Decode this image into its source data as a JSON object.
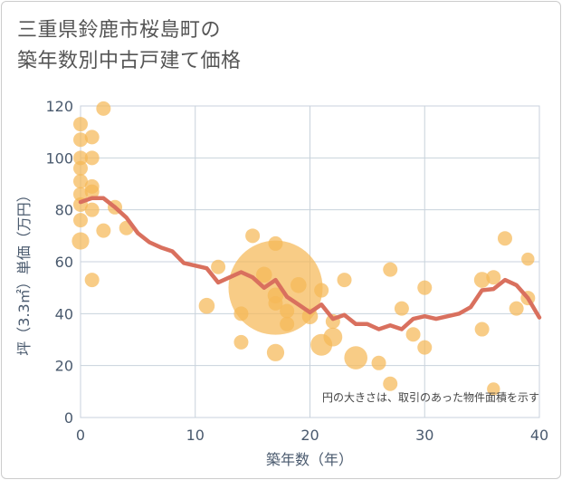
{
  "title_lines": [
    "三重県鈴鹿市桜島町の",
    "築年数別中古戸建て価格"
  ],
  "colors": {
    "bubble": "#f5b957",
    "line": "#d9705e",
    "grid": "#c8d2dc",
    "axis_text": "#4a5a6e"
  },
  "chart_data": {
    "type": "scatter",
    "xlabel": "築年数（年）",
    "ylabel": "坪（3.3㎡）単価（万円）",
    "xlim": [
      0,
      40
    ],
    "ylim": [
      0,
      120
    ],
    "x_ticks": [
      "0",
      "10",
      "20",
      "30",
      "40"
    ],
    "y_ticks": [
      "0",
      "20",
      "40",
      "60",
      "80",
      "100",
      "120"
    ],
    "grid": true,
    "annotation": "円の大きさは、取引のあった物件面積を示す",
    "series": [
      {
        "kind": "bubble",
        "points": [
          {
            "x": 0,
            "y": 113,
            "s": 1
          },
          {
            "x": 0,
            "y": 107,
            "s": 1
          },
          {
            "x": 0,
            "y": 100,
            "s": 1
          },
          {
            "x": 0,
            "y": 96,
            "s": 1
          },
          {
            "x": 0,
            "y": 91,
            "s": 1
          },
          {
            "x": 0,
            "y": 86,
            "s": 1
          },
          {
            "x": 0,
            "y": 82,
            "s": 1
          },
          {
            "x": 0,
            "y": 76,
            "s": 1
          },
          {
            "x": 0,
            "y": 68,
            "s": 1.2
          },
          {
            "x": 1,
            "y": 108,
            "s": 1
          },
          {
            "x": 1,
            "y": 100,
            "s": 1
          },
          {
            "x": 1,
            "y": 89,
            "s": 1
          },
          {
            "x": 1,
            "y": 87,
            "s": 1
          },
          {
            "x": 1,
            "y": 80,
            "s": 1
          },
          {
            "x": 1,
            "y": 53,
            "s": 1
          },
          {
            "x": 2,
            "y": 119,
            "s": 1
          },
          {
            "x": 2,
            "y": 72,
            "s": 1
          },
          {
            "x": 3,
            "y": 81,
            "s": 1
          },
          {
            "x": 4,
            "y": 73,
            "s": 1
          },
          {
            "x": 11,
            "y": 43,
            "s": 1.1
          },
          {
            "x": 12,
            "y": 58,
            "s": 1
          },
          {
            "x": 14,
            "y": 40,
            "s": 1
          },
          {
            "x": 14,
            "y": 29,
            "s": 1
          },
          {
            "x": 15,
            "y": 70,
            "s": 1
          },
          {
            "x": 16,
            "y": 55,
            "s": 1.1
          },
          {
            "x": 17,
            "y": 50,
            "s": 6.5
          },
          {
            "x": 17,
            "y": 67,
            "s": 1
          },
          {
            "x": 17,
            "y": 47,
            "s": 1.1
          },
          {
            "x": 17,
            "y": 44,
            "s": 1
          },
          {
            "x": 17,
            "y": 25,
            "s": 1.2
          },
          {
            "x": 18,
            "y": 41,
            "s": 1
          },
          {
            "x": 18,
            "y": 36,
            "s": 1
          },
          {
            "x": 19,
            "y": 51,
            "s": 1.1
          },
          {
            "x": 20,
            "y": 39,
            "s": 1.1
          },
          {
            "x": 21,
            "y": 49,
            "s": 1
          },
          {
            "x": 21,
            "y": 28,
            "s": 1.5
          },
          {
            "x": 22,
            "y": 37,
            "s": 1
          },
          {
            "x": 22,
            "y": 31,
            "s": 1.3
          },
          {
            "x": 23,
            "y": 53,
            "s": 1
          },
          {
            "x": 24,
            "y": 23,
            "s": 1.6
          },
          {
            "x": 26,
            "y": 21,
            "s": 1
          },
          {
            "x": 27,
            "y": 57,
            "s": 1
          },
          {
            "x": 27,
            "y": 13,
            "s": 1
          },
          {
            "x": 28,
            "y": 42,
            "s": 1
          },
          {
            "x": 29,
            "y": 32,
            "s": 1
          },
          {
            "x": 30,
            "y": 50,
            "s": 1
          },
          {
            "x": 30,
            "y": 27,
            "s": 1
          },
          {
            "x": 35,
            "y": 53,
            "s": 1.1
          },
          {
            "x": 35,
            "y": 34,
            "s": 1
          },
          {
            "x": 36,
            "y": 54,
            "s": 1
          },
          {
            "x": 36,
            "y": 11,
            "s": 0.9
          },
          {
            "x": 37,
            "y": 69,
            "s": 1
          },
          {
            "x": 38,
            "y": 42,
            "s": 1
          },
          {
            "x": 39,
            "y": 61,
            "s": 0.9
          },
          {
            "x": 39,
            "y": 46,
            "s": 1
          }
        ]
      },
      {
        "kind": "line",
        "points": [
          {
            "x": 0,
            "y": 83
          },
          {
            "x": 1,
            "y": 84.5
          },
          {
            "x": 2,
            "y": 84.5
          },
          {
            "x": 3,
            "y": 81
          },
          {
            "x": 4,
            "y": 77
          },
          {
            "x": 5,
            "y": 71
          },
          {
            "x": 6,
            "y": 67.5
          },
          {
            "x": 7,
            "y": 65.5
          },
          {
            "x": 8,
            "y": 64
          },
          {
            "x": 9,
            "y": 59.5
          },
          {
            "x": 10,
            "y": 58.5
          },
          {
            "x": 11,
            "y": 57.5
          },
          {
            "x": 12,
            "y": 52
          },
          {
            "x": 13,
            "y": 54
          },
          {
            "x": 14,
            "y": 56
          },
          {
            "x": 15,
            "y": 54
          },
          {
            "x": 16,
            "y": 50
          },
          {
            "x": 17,
            "y": 53
          },
          {
            "x": 18,
            "y": 46.5
          },
          {
            "x": 19,
            "y": 43.5
          },
          {
            "x": 20,
            "y": 40.5
          },
          {
            "x": 21,
            "y": 43.5
          },
          {
            "x": 22,
            "y": 38
          },
          {
            "x": 23,
            "y": 39.5
          },
          {
            "x": 24,
            "y": 36
          },
          {
            "x": 25,
            "y": 36
          },
          {
            "x": 26,
            "y": 34
          },
          {
            "x": 27,
            "y": 35.5
          },
          {
            "x": 28,
            "y": 34
          },
          {
            "x": 29,
            "y": 38
          },
          {
            "x": 30,
            "y": 39
          },
          {
            "x": 31,
            "y": 38
          },
          {
            "x": 32,
            "y": 39
          },
          {
            "x": 33,
            "y": 40
          },
          {
            "x": 34,
            "y": 42.5
          },
          {
            "x": 35,
            "y": 49
          },
          {
            "x": 36,
            "y": 49.5
          },
          {
            "x": 37,
            "y": 53
          },
          {
            "x": 38,
            "y": 51
          },
          {
            "x": 39,
            "y": 46
          },
          {
            "x": 40,
            "y": 38.5
          }
        ]
      }
    ]
  }
}
